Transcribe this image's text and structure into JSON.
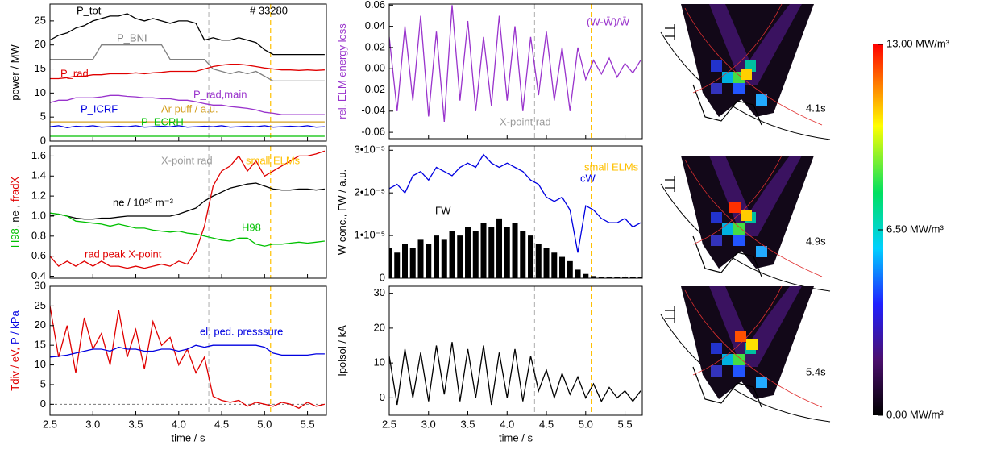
{
  "chart_data": [
    {
      "type": "line",
      "ylabel_parts": [
        {
          "text": "power / MW",
          "color": "#000000"
        }
      ],
      "annotations": [
        "# 33280"
      ],
      "x": [
        2.5,
        2.6,
        2.7,
        2.8,
        2.9,
        3.0,
        3.1,
        3.2,
        3.3,
        3.4,
        3.5,
        3.6,
        3.7,
        3.8,
        3.9,
        4.0,
        4.1,
        4.2,
        4.3,
        4.4,
        4.5,
        4.6,
        4.7,
        4.8,
        4.9,
        5.0,
        5.1,
        5.2,
        5.3,
        5.4,
        5.5,
        5.6,
        5.7
      ],
      "xlim": [
        2.5,
        5.72
      ],
      "xticks": [
        2.5,
        3,
        3.5,
        4,
        4.5,
        5,
        5.5
      ],
      "ylim": [
        0,
        28.5
      ],
      "yticks": [
        0,
        5,
        10,
        15,
        20,
        25
      ],
      "series": [
        {
          "name": "P_tot",
          "color": "#000000",
          "values": [
            21,
            22,
            22.5,
            23.5,
            24,
            25,
            25.5,
            26,
            26,
            26.5,
            25.5,
            25,
            25.5,
            25,
            24.5,
            25,
            25,
            24.5,
            21,
            21.5,
            21,
            21,
            21.5,
            21,
            20.5,
            19,
            18,
            18,
            18,
            18,
            18,
            18,
            18
          ]
        },
        {
          "name": "P_BNI",
          "color": "#808080",
          "values": [
            17,
            17,
            17,
            17,
            17,
            17,
            20,
            20,
            20,
            20,
            20,
            20,
            20,
            20,
            17,
            17,
            17,
            17,
            17,
            15,
            14.5,
            14,
            14.5,
            14,
            14.5,
            13.5,
            12.5,
            12.5,
            12.5,
            12.5,
            12.5,
            12.5,
            12.5
          ]
        },
        {
          "name": "P_rad",
          "color": "#e00000",
          "values": [
            13,
            13,
            13.2,
            13.5,
            13.5,
            13.8,
            13.8,
            14,
            14,
            14,
            14.2,
            14,
            14.2,
            14.3,
            14.5,
            14.5,
            14.5,
            14.5,
            15,
            15.5,
            15.8,
            16,
            16,
            15.8,
            15.5,
            15.2,
            15,
            14.8,
            14.8,
            14.7,
            14.8,
            14.7,
            14.8
          ]
        },
        {
          "name": "P_rad,main",
          "color": "#9933cc",
          "values": [
            8,
            8.5,
            8.5,
            9,
            9,
            9,
            9.2,
            9.5,
            9.5,
            9.3,
            9.2,
            9,
            9,
            8.8,
            8.8,
            8.5,
            8.5,
            8.2,
            7.8,
            7.5,
            7.5,
            7.2,
            7,
            6.8,
            6.5,
            6,
            5.8,
            5.5,
            5.5,
            5.5,
            5.5,
            5.5,
            5.5
          ]
        },
        {
          "name": "P_ICRF",
          "color": "#0000e0",
          "values": [
            3,
            3.2,
            2.8,
            3.1,
            3,
            3.2,
            2.9,
            3,
            3.1,
            3,
            3.2,
            2.9,
            3,
            3.1,
            3,
            3.2,
            2.9,
            3,
            3.1,
            3,
            3.2,
            2.9,
            3,
            3.1,
            3,
            3.2,
            2.9,
            3,
            3.1,
            3,
            3.2,
            2.9,
            3
          ]
        },
        {
          "name": "Ar puff / a.u.",
          "color": "#d4a020",
          "values": [
            4,
            4,
            4,
            4,
            4,
            4,
            4,
            4,
            4,
            4,
            4,
            4,
            4,
            4,
            4,
            4,
            4,
            4,
            4,
            4,
            4,
            4,
            4,
            4,
            4,
            4,
            4,
            4,
            4,
            4,
            4,
            4,
            4
          ]
        },
        {
          "name": "P_ECRH",
          "color": "#00c000",
          "values": [
            1,
            1,
            1,
            1,
            1,
            1,
            1,
            1,
            1,
            1,
            1,
            1,
            1,
            1,
            1,
            1,
            1,
            1,
            1,
            1,
            1,
            1,
            1,
            1,
            1,
            1,
            1,
            1,
            1,
            1,
            1,
            1,
            1
          ]
        }
      ]
    },
    {
      "type": "line",
      "ylabel_parts": [
        {
          "text": "H98,",
          "color": "#00c000"
        },
        {
          "text": "n̄e ,",
          "color": "#000000"
        },
        {
          "text": "fradX",
          "color": "#e00000"
        }
      ],
      "annotations": [
        "X-point rad",
        "small ELMs"
      ],
      "x": [
        2.5,
        2.6,
        2.7,
        2.8,
        2.9,
        3.0,
        3.1,
        3.2,
        3.3,
        3.4,
        3.5,
        3.6,
        3.7,
        3.8,
        3.9,
        4.0,
        4.1,
        4.2,
        4.3,
        4.4,
        4.5,
        4.6,
        4.7,
        4.8,
        4.9,
        5.0,
        5.1,
        5.2,
        5.3,
        5.4,
        5.5,
        5.6,
        5.7
      ],
      "xlim": [
        2.5,
        5.72
      ],
      "xticks": [
        2.5,
        3,
        3.5,
        4,
        4.5,
        5,
        5.5
      ],
      "ylim": [
        0.38,
        1.7
      ],
      "yticks": [
        0.4,
        0.6,
        0.8,
        {
          "value": 1,
          "label": "1.0"
        },
        1.2,
        1.4,
        1.6
      ],
      "series": [
        {
          "name": "ne / 10²⁰ m⁻³",
          "color": "#000000",
          "values": [
            1.0,
            1.02,
            1.0,
            0.98,
            0.97,
            0.97,
            0.98,
            0.98,
            0.99,
            1.0,
            1.0,
            1.0,
            1.0,
            1.0,
            1.0,
            1.02,
            1.05,
            1.08,
            1.15,
            1.2,
            1.24,
            1.28,
            1.3,
            1.32,
            1.33,
            1.3,
            1.27,
            1.26,
            1.26,
            1.27,
            1.27,
            1.26,
            1.27
          ]
        },
        {
          "name": "H98",
          "color": "#00c000",
          "values": [
            1.03,
            1.02,
            1.0,
            0.95,
            0.94,
            0.93,
            0.92,
            0.9,
            0.92,
            0.9,
            0.88,
            0.88,
            0.86,
            0.85,
            0.84,
            0.85,
            0.83,
            0.82,
            0.8,
            0.78,
            0.76,
            0.75,
            0.78,
            0.78,
            0.72,
            0.7,
            0.72,
            0.72,
            0.73,
            0.74,
            0.73,
            0.74,
            0.75
          ]
        },
        {
          "name": "rad peak X-point",
          "color": "#e00000",
          "values": [
            0.6,
            0.5,
            0.55,
            0.5,
            0.55,
            0.5,
            0.55,
            0.5,
            0.5,
            0.48,
            0.5,
            0.48,
            0.5,
            0.52,
            0.5,
            0.55,
            0.52,
            0.65,
            0.9,
            1.3,
            1.45,
            1.5,
            1.6,
            1.45,
            1.55,
            1.4,
            1.45,
            1.5,
            1.55,
            1.6,
            1.6,
            1.62,
            1.65
          ]
        }
      ]
    },
    {
      "type": "line",
      "ylabel_parts": [
        {
          "text": "Tdiv / eV,",
          "color": "#e00000"
        },
        {
          "text": "P  / kPa",
          "color": "#0000e0"
        }
      ],
      "xlabel": "time / s",
      "reference_line": 0,
      "x": [
        2.5,
        2.6,
        2.7,
        2.8,
        2.9,
        3.0,
        3.1,
        3.2,
        3.3,
        3.4,
        3.5,
        3.6,
        3.7,
        3.8,
        3.9,
        4.0,
        4.1,
        4.2,
        4.3,
        4.4,
        4.5,
        4.6,
        4.7,
        4.8,
        4.9,
        5.0,
        5.1,
        5.2,
        5.3,
        5.4,
        5.5,
        5.6,
        5.7
      ],
      "xlim": [
        2.5,
        5.72
      ],
      "xticks": [
        2.5,
        {
          "value": 3,
          "label": "3.0"
        },
        3.5,
        {
          "value": 4,
          "label": "4.0"
        },
        4.5,
        {
          "value": 5,
          "label": "5.0"
        },
        5.5
      ],
      "ylim": [
        -2.8,
        30
      ],
      "yticks": [
        0,
        5,
        10,
        15,
        20,
        25,
        30
      ],
      "series": [
        {
          "color": "#e00000",
          "values": [
            25,
            12,
            20,
            8,
            22,
            14,
            18,
            10,
            24,
            12,
            19,
            9,
            21,
            15,
            17,
            10,
            14,
            8,
            12,
            2,
            1,
            0.5,
            1,
            -0.5,
            0.5,
            0,
            -0.5,
            0.5,
            0,
            -1,
            0.5,
            -0.5,
            0
          ]
        },
        {
          "name": "el. ped. presssure",
          "color": "#0000e0",
          "values": [
            12,
            12.2,
            12.5,
            13,
            13.5,
            14,
            14,
            13.5,
            14.5,
            14,
            14,
            13.5,
            13.5,
            14,
            14,
            13.5,
            14,
            15,
            14.5,
            15,
            15,
            15,
            15,
            15,
            15,
            14.5,
            13,
            12.5,
            12.5,
            12.5,
            12.5,
            12.8,
            12.8
          ]
        }
      ]
    },
    {
      "type": "line",
      "ylabel_parts": [
        {
          "text": "rel. ELM energy loss",
          "color": "#9933cc"
        }
      ],
      "annotations": [
        "(W-W̄)/W̄",
        "X-point rad"
      ],
      "x": [
        2.5,
        2.6,
        2.7,
        2.8,
        2.9,
        3.0,
        3.1,
        3.2,
        3.3,
        3.4,
        3.5,
        3.6,
        3.7,
        3.8,
        3.9,
        4.0,
        4.1,
        4.2,
        4.3,
        4.4,
        4.5,
        4.6,
        4.7,
        4.8,
        4.9,
        5.0,
        5.1,
        5.2,
        5.3,
        5.4,
        5.5,
        5.6,
        5.7
      ],
      "xlim": [
        2.5,
        5.72
      ],
      "xticks": [
        2.5,
        3,
        3.5,
        4,
        4.5,
        5,
        5.5
      ],
      "ylim": [
        -0.066,
        0.061
      ],
      "yticks": [
        -0.06,
        -0.04,
        -0.02,
        {
          "value": 0,
          "label": "0.00"
        },
        0.02,
        0.04,
        0.06
      ],
      "series": [
        {
          "color": "#9933cc",
          "values": [
            0.03,
            -0.04,
            0.04,
            -0.03,
            0.05,
            -0.045,
            0.035,
            -0.05,
            0.06,
            -0.03,
            0.045,
            -0.04,
            0.03,
            -0.035,
            0.05,
            -0.03,
            0.04,
            -0.04,
            0.03,
            -0.025,
            0.035,
            -0.03,
            0.02,
            -0.04,
            0.02,
            -0.01,
            0.008,
            -0.005,
            0.01,
            -0.008,
            0.005,
            -0.004,
            0.008
          ]
        }
      ]
    },
    {
      "type": "line",
      "ylabel_parts": [
        {
          "text": "W conc., ΓW / a.u.",
          "color": "#000000"
        }
      ],
      "annotations": [
        "small ELMs"
      ],
      "x": [
        2.5,
        2.6,
        2.7,
        2.8,
        2.9,
        3.0,
        3.1,
        3.2,
        3.3,
        3.4,
        3.5,
        3.6,
        3.7,
        3.8,
        3.9,
        4.0,
        4.1,
        4.2,
        4.3,
        4.4,
        4.5,
        4.6,
        4.7,
        4.8,
        4.9,
        5.0,
        5.1,
        5.2,
        5.3,
        5.4,
        5.5,
        5.6,
        5.7
      ],
      "xlim": [
        2.5,
        5.72
      ],
      "xticks": [
        2.5,
        3,
        3.5,
        4,
        4.5,
        5,
        5.5
      ],
      "ylim": [
        0,
        3.1e-05
      ],
      "yticks": [
        0,
        {
          "value": 1e-05,
          "label": "1•10⁻⁵"
        },
        {
          "value": 2e-05,
          "label": "2•10⁻⁵"
        },
        {
          "value": 3e-05,
          "label": "3•10⁻⁵"
        }
      ],
      "series": [
        {
          "name": "ΓW",
          "color": "#000000",
          "style": "bars",
          "values": [
            7e-06,
            6e-06,
            8e-06,
            7e-06,
            9e-06,
            8e-06,
            1e-05,
            9e-06,
            1.1e-05,
            1e-05,
            1.2e-05,
            1.1e-05,
            1.3e-05,
            1.2e-05,
            1.4e-05,
            1.2e-05,
            1.3e-05,
            1.1e-05,
            1e-05,
            8e-06,
            7e-06,
            6e-06,
            5e-06,
            4e-06,
            2e-06,
            1e-06,
            5e-07,
            3e-07,
            2e-07,
            2e-07,
            2e-07,
            2e-07,
            2e-07
          ]
        },
        {
          "name": "cW",
          "color": "#0000e0",
          "values": [
            2.1e-05,
            2.2e-05,
            2e-05,
            2.4e-05,
            2.5e-05,
            2.3e-05,
            2.6e-05,
            2.5e-05,
            2.4e-05,
            2.6e-05,
            2.7e-05,
            2.6e-05,
            2.9e-05,
            2.7e-05,
            2.6e-05,
            2.7e-05,
            2.6e-05,
            2.5e-05,
            2.3e-05,
            2.2e-05,
            1.9e-05,
            1.8e-05,
            1.9e-05,
            1.6e-05,
            6e-06,
            1.7e-05,
            1.6e-05,
            1.4e-05,
            1.3e-05,
            1.3e-05,
            1.4e-05,
            1.2e-05,
            1.3e-05
          ]
        }
      ]
    },
    {
      "type": "line",
      "ylabel_parts": [
        {
          "text": "Ipolsol / kA",
          "color": "#000000"
        }
      ],
      "xlabel": "time / s",
      "x": [
        2.5,
        2.6,
        2.7,
        2.8,
        2.9,
        3.0,
        3.1,
        3.2,
        3.3,
        3.4,
        3.5,
        3.6,
        3.7,
        3.8,
        3.9,
        4.0,
        4.1,
        4.2,
        4.3,
        4.4,
        4.5,
        4.6,
        4.7,
        4.8,
        4.9,
        5.0,
        5.1,
        5.2,
        5.3,
        5.4,
        5.5,
        5.6,
        5.7
      ],
      "xlim": [
        2.5,
        5.72
      ],
      "xticks": [
        2.5,
        {
          "value": 3,
          "label": "3.0"
        },
        3.5,
        {
          "value": 4,
          "label": "4.0"
        },
        4.5,
        {
          "value": 5,
          "label": "5.0"
        },
        5.5
      ],
      "ylim": [
        -5,
        32
      ],
      "yticks": [
        0,
        10,
        20,
        30
      ],
      "series": [
        {
          "color": "#000000",
          "values": [
            12,
            -2,
            14,
            0,
            13,
            -1,
            15,
            1,
            16,
            -1,
            14,
            0,
            15,
            -2,
            13,
            0,
            14,
            -1,
            12,
            2,
            8,
            0,
            7,
            1,
            6,
            0,
            4,
            -1,
            3,
            0,
            2,
            -1,
            2
          ]
        }
      ]
    },
    {
      "type": "colorbar",
      "ylim": [
        0,
        13
      ],
      "yticks": [
        {
          "value": 13,
          "label": "13.00 MW/m³"
        },
        {
          "value": 6.5,
          "label": "6.50 MW/m³"
        },
        {
          "value": 0,
          "label": "0.00 MW/m³"
        }
      ]
    }
  ],
  "events": [
    {
      "x": 4.35,
      "color": "#bbbbbb"
    },
    {
      "x": 5.07,
      "color": "#ffc000"
    }
  ],
  "images": {
    "times": [
      "4.1s",
      "4.9s",
      "5.4s"
    ]
  }
}
